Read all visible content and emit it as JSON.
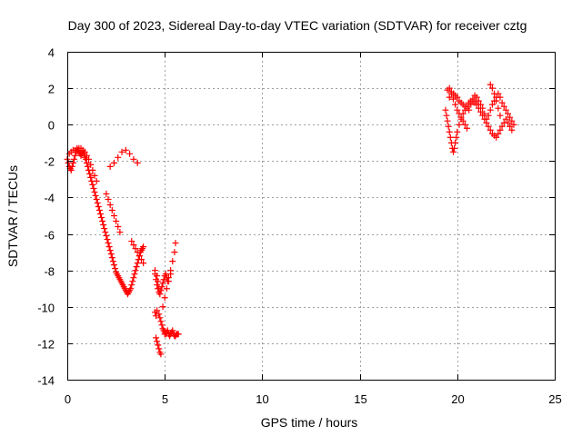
{
  "chart_data": {
    "type": "scatter",
    "title": "Day 300 of 2023, Sidereal Day-to-day VTEC variation (SDTVAR) for receiver cztg",
    "xlabel": "GPS time / hours",
    "ylabel": "SDTVAR / TECUs",
    "xlim": [
      0,
      25
    ],
    "ylim": [
      -14,
      4
    ],
    "xticks": [
      0,
      5,
      10,
      15,
      20,
      25
    ],
    "yticks": [
      -14,
      -12,
      -10,
      -8,
      -6,
      -4,
      -2,
      0,
      2,
      4
    ],
    "grid": true,
    "marker": "+",
    "color": "#ff0000",
    "series": [
      {
        "name": "SDTVAR",
        "x": [
          0.0,
          0.05,
          0.1,
          0.15,
          0.2,
          0.25,
          0.3,
          0.35,
          0.4,
          0.45,
          0.5,
          0.55,
          0.6,
          0.65,
          0.7,
          0.75,
          0.8,
          0.85,
          0.9,
          0.95,
          1.0,
          1.05,
          1.1,
          1.15,
          1.2,
          1.25,
          1.3,
          1.35,
          1.4,
          1.45,
          1.5,
          1.55,
          1.6,
          1.65,
          1.7,
          1.75,
          1.8,
          1.85,
          1.9,
          1.95,
          2.0,
          2.05,
          2.1,
          2.15,
          2.2,
          2.25,
          2.3,
          2.35,
          2.4,
          2.45,
          2.5,
          2.55,
          2.6,
          2.65,
          2.7,
          2.75,
          2.8,
          2.85,
          2.9,
          2.95,
          3.0,
          3.05,
          3.1,
          3.15,
          3.2,
          3.25,
          3.3,
          3.35,
          3.4,
          3.45,
          3.5,
          3.55,
          3.6,
          3.65,
          3.7,
          3.75,
          3.8,
          3.85,
          3.9,
          0.1,
          0.2,
          0.3,
          0.4,
          0.5,
          0.6,
          0.7,
          0.8,
          0.9,
          1.0,
          1.1,
          1.2,
          1.3,
          1.4,
          1.5,
          2.0,
          2.1,
          2.2,
          2.3,
          2.4,
          2.5,
          2.6,
          2.7,
          3.3,
          3.4,
          3.5,
          3.6,
          3.7,
          3.8,
          3.9,
          2.2,
          2.4,
          2.6,
          2.8,
          3.0,
          3.2,
          3.4,
          3.6,
          4.5,
          4.5,
          4.55,
          4.6,
          4.6,
          4.65,
          4.7,
          4.7,
          4.75,
          4.8,
          4.85,
          4.9,
          4.95,
          5.0,
          5.0,
          5.05,
          5.1,
          5.15,
          5.2,
          5.25,
          5.3,
          5.35,
          5.4,
          5.45,
          5.5,
          5.55,
          5.6,
          5.65,
          5.7,
          4.5,
          4.55,
          4.6,
          4.65,
          4.7,
          4.75,
          4.8,
          4.85,
          4.9,
          4.95,
          5.0,
          5.05,
          5.1,
          5.15,
          5.2,
          5.3,
          5.4,
          5.5,
          5.55,
          4.55,
          4.6,
          4.65,
          4.7,
          4.75,
          4.8,
          4.9,
          5.0,
          5.1,
          5.2,
          5.3,
          19.5,
          19.6,
          19.7,
          19.8,
          19.9,
          20.0,
          20.1,
          20.2,
          20.3,
          20.4,
          20.5,
          20.6,
          20.7,
          20.8,
          20.9,
          21.0,
          21.1,
          21.2,
          21.3,
          21.4,
          21.5,
          21.6,
          21.7,
          21.8,
          21.9,
          22.0,
          22.1,
          22.2,
          22.3,
          22.4,
          22.5,
          22.6,
          22.7,
          22.8,
          22.9,
          19.4,
          19.45,
          19.5,
          19.55,
          19.6,
          19.65,
          19.7,
          19.75,
          19.8,
          19.85,
          19.9,
          19.95,
          20.0,
          20.1,
          20.2,
          20.3,
          20.4,
          20.5,
          20.6,
          20.7,
          20.8,
          20.9,
          21.0,
          21.1,
          21.2,
          21.3,
          21.4,
          21.5,
          21.6,
          21.7,
          21.8,
          21.9,
          22.0,
          22.1,
          22.2,
          22.3,
          22.4,
          22.5,
          22.6,
          22.7,
          22.8,
          19.6,
          19.7,
          19.8,
          19.9,
          20.0,
          20.1,
          20.2,
          20.3,
          20.4,
          20.5,
          21.7,
          21.8,
          21.9,
          22.0,
          22.1,
          22.2
        ],
        "y": [
          -1.9,
          -2.1,
          -2.3,
          -2.4,
          -2.5,
          -2.3,
          -2.1,
          -1.9,
          -1.7,
          -1.5,
          -1.4,
          -1.4,
          -1.5,
          -1.6,
          -1.7,
          -1.6,
          -1.5,
          -1.6,
          -1.8,
          -1.9,
          -2.1,
          -2.3,
          -2.5,
          -2.7,
          -2.9,
          -3.1,
          -3.3,
          -3.5,
          -3.7,
          -3.9,
          -4.1,
          -4.3,
          -4.5,
          -4.7,
          -4.9,
          -5.1,
          -5.3,
          -5.5,
          -5.7,
          -5.9,
          -6.1,
          -6.3,
          -6.5,
          -6.7,
          -6.9,
          -7.1,
          -7.3,
          -7.5,
          -7.7,
          -7.9,
          -8.1,
          -8.2,
          -8.3,
          -8.4,
          -8.5,
          -8.6,
          -8.7,
          -8.8,
          -8.9,
          -9.0,
          -9.1,
          -9.2,
          -9.3,
          -9.2,
          -9.1,
          -9.0,
          -8.8,
          -8.6,
          -8.4,
          -8.2,
          -8.0,
          -7.8,
          -7.6,
          -7.4,
          -7.2,
          -7.0,
          -6.9,
          -6.8,
          -6.7,
          -1.6,
          -1.5,
          -1.4,
          -1.4,
          -1.3,
          -1.3,
          -1.3,
          -1.4,
          -1.5,
          -1.7,
          -1.9,
          -2.2,
          -2.5,
          -2.8,
          -3.1,
          -3.8,
          -4.1,
          -4.4,
          -4.7,
          -5.0,
          -5.3,
          -5.6,
          -5.9,
          -6.4,
          -6.6,
          -6.8,
          -7.0,
          -7.2,
          -7.4,
          -7.6,
          -2.3,
          -2.1,
          -1.8,
          -1.5,
          -1.4,
          -1.6,
          -1.9,
          -2.1,
          -8.0,
          -10.3,
          -10.5,
          -10.2,
          -8.3,
          -8.6,
          -9.0,
          -10.4,
          -10.6,
          -10.8,
          -11.0,
          -11.2,
          -11.3,
          -11.4,
          -11.5,
          -11.5,
          -11.4,
          -11.3,
          -11.5,
          -11.6,
          -11.5,
          -11.4,
          -11.3,
          -11.5,
          -11.6,
          -11.6,
          -11.5,
          -11.5,
          -11.5,
          -8.2,
          -8.5,
          -8.8,
          -9.0,
          -9.2,
          -9.3,
          -9.1,
          -8.9,
          -8.7,
          -8.5,
          -8.3,
          -8.2,
          -8.4,
          -8.6,
          -8.4,
          -8.0,
          -7.5,
          -7.0,
          -6.5,
          -11.7,
          -11.9,
          -12.1,
          -12.3,
          -12.5,
          -12.6,
          -10.0,
          -9.5,
          -9.0,
          -8.6,
          -8.2,
          1.9,
          2.0,
          1.8,
          1.7,
          1.6,
          1.5,
          1.3,
          1.2,
          1.1,
          1.0,
          0.9,
          0.8,
          1.1,
          1.4,
          1.6,
          1.5,
          1.3,
          1.1,
          0.9,
          0.6,
          0.3,
          0.5,
          0.8,
          1.1,
          1.3,
          1.5,
          1.7,
          1.5,
          1.2,
          1.0,
          0.8,
          0.6,
          0.4,
          0.2,
          0.0,
          0.8,
          0.5,
          0.2,
          -0.1,
          -0.4,
          -0.7,
          -1.0,
          -1.3,
          -1.5,
          -1.3,
          -1.0,
          -0.7,
          -0.4,
          0.0,
          0.3,
          0.6,
          0.8,
          1.0,
          1.2,
          1.3,
          1.3,
          1.2,
          1.1,
          0.9,
          0.7,
          0.5,
          0.3,
          0.1,
          -0.1,
          -0.3,
          -0.5,
          -0.6,
          -0.7,
          -0.5,
          -0.3,
          -0.1,
          0.1,
          0.3,
          0.1,
          -0.1,
          -0.3,
          1.5,
          1.7,
          1.4,
          1.1,
          0.8,
          0.6,
          0.4,
          0.2,
          0.0,
          -0.2,
          2.2,
          2.0,
          1.7,
          1.3,
          0.9,
          0.5
        ]
      }
    ]
  }
}
